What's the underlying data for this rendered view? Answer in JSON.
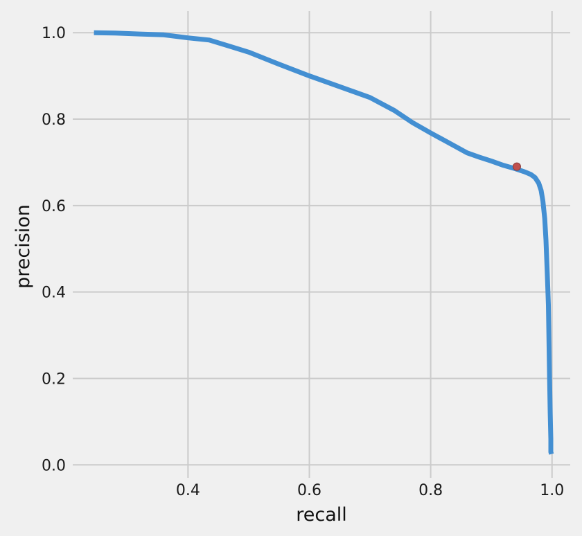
{
  "chart_data": {
    "type": "line",
    "title": "",
    "xlabel": "recall",
    "ylabel": "precision",
    "xlim": [
      0.21,
      1.03
    ],
    "ylim": [
      -0.03,
      1.05
    ],
    "xticks": [
      0.4,
      0.6,
      0.8,
      1.0
    ],
    "xtick_labels": [
      "0.4",
      "0.6",
      "0.8",
      "1.0"
    ],
    "yticks": [
      0.0,
      0.2,
      0.4,
      0.6,
      0.8,
      1.0
    ],
    "ytick_labels": [
      "0.0",
      "0.2",
      "0.4",
      "0.6",
      "0.8",
      "1.0"
    ],
    "grid": true,
    "legend": "none",
    "series": [
      {
        "color": "#438fd2",
        "x": [
          0.245,
          0.28,
          0.32,
          0.36,
          0.4,
          0.435,
          0.47,
          0.5,
          0.55,
          0.6,
          0.65,
          0.7,
          0.74,
          0.77,
          0.8,
          0.83,
          0.86,
          0.88,
          0.9,
          0.92,
          0.94,
          0.955,
          0.965,
          0.972,
          0.978,
          0.982,
          0.985,
          0.988,
          0.99,
          0.992,
          0.994,
          0.995,
          0.996,
          0.997,
          0.998,
          0.998,
          0.999
        ],
        "y": [
          1.0,
          0.999,
          0.997,
          0.995,
          0.988,
          0.983,
          0.968,
          0.955,
          0.927,
          0.9,
          0.875,
          0.85,
          0.82,
          0.792,
          0.768,
          0.745,
          0.722,
          0.712,
          0.703,
          0.693,
          0.685,
          0.678,
          0.672,
          0.665,
          0.652,
          0.635,
          0.61,
          0.57,
          0.52,
          0.45,
          0.37,
          0.28,
          0.2,
          0.12,
          0.06,
          0.03,
          0.025
        ]
      }
    ],
    "highlight_point": {
      "x": 0.942,
      "y": 0.69,
      "color": "#c0504d"
    }
  }
}
